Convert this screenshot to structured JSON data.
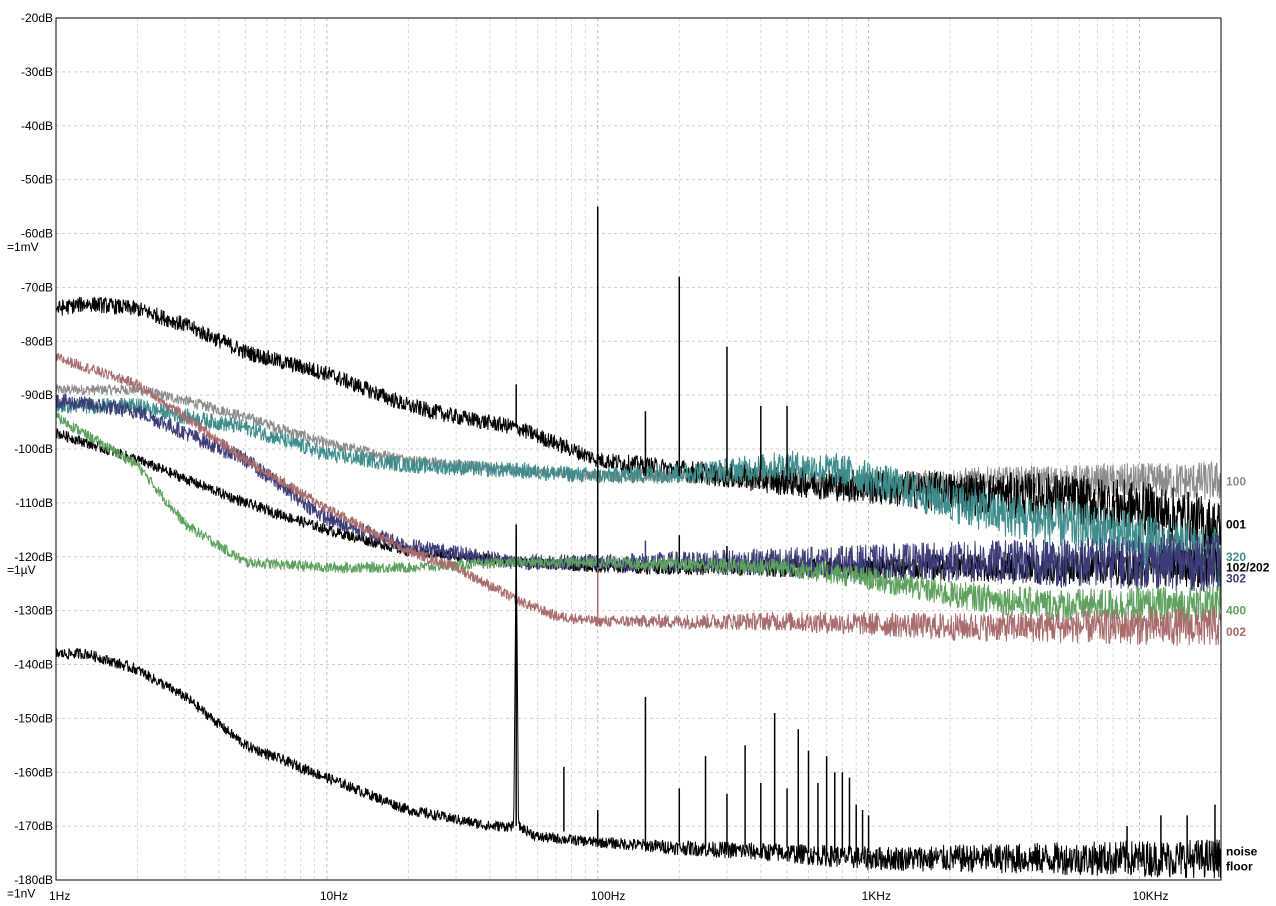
{
  "chart_data": {
    "type": "line",
    "title": "",
    "xlabel": "",
    "ylabel": "",
    "x_scale": "log",
    "xlim": [
      1,
      20000
    ],
    "ylim": [
      -180,
      -20
    ],
    "grid": true,
    "x_ticks": [
      {
        "v": 1,
        "label": "1Hz"
      },
      {
        "v": 10,
        "label": "10Hz"
      },
      {
        "v": 100,
        "label": "100Hz"
      },
      {
        "v": 1000,
        "label": "1KHz"
      },
      {
        "v": 10000,
        "label": "10KHz"
      }
    ],
    "y_ticks": [
      {
        "v": -20,
        "label": "-20dB"
      },
      {
        "v": -30,
        "label": "-30dB"
      },
      {
        "v": -40,
        "label": "-40dB"
      },
      {
        "v": -50,
        "label": "-50dB"
      },
      {
        "v": -60,
        "label": "-60dB"
      },
      {
        "v": -70,
        "label": "-70dB"
      },
      {
        "v": -80,
        "label": "-80dB"
      },
      {
        "v": -90,
        "label": "-90dB"
      },
      {
        "v": -100,
        "label": "-100dB"
      },
      {
        "v": -110,
        "label": "-110dB"
      },
      {
        "v": -120,
        "label": "-120dB"
      },
      {
        "v": -130,
        "label": "-130dB"
      },
      {
        "v": -140,
        "label": "-140dB"
      },
      {
        "v": -150,
        "label": "-150dB"
      },
      {
        "v": -160,
        "label": "-160dB"
      },
      {
        "v": -170,
        "label": "-170dB"
      },
      {
        "v": -180,
        "label": "-180dB"
      }
    ],
    "y_notes": [
      {
        "v": -62.5,
        "label": "=1mV"
      },
      {
        "v": -122.5,
        "label": "=1µV"
      },
      {
        "v": -182.5,
        "label": "=1nV"
      }
    ],
    "series": [
      {
        "name": "100",
        "color": "#8c8c8c",
        "points": [
          [
            1,
            -89
          ],
          [
            2,
            -89
          ],
          [
            3,
            -91
          ],
          [
            5,
            -94
          ],
          [
            10,
            -99
          ],
          [
            20,
            -102
          ],
          [
            50,
            -104
          ],
          [
            100,
            -105
          ],
          [
            200,
            -105
          ],
          [
            500,
            -106
          ],
          [
            1000,
            -107
          ],
          [
            2000,
            -106
          ],
          [
            5000,
            -106
          ],
          [
            10000,
            -106
          ],
          [
            20000,
            -106
          ]
        ],
        "band": 2,
        "label_y": -106
      },
      {
        "name": "001",
        "color": "#000000",
        "points": [
          [
            1,
            -74
          ],
          [
            1.3,
            -73
          ],
          [
            2,
            -74
          ],
          [
            3,
            -77
          ],
          [
            5,
            -82
          ],
          [
            7,
            -84
          ],
          [
            10,
            -86
          ],
          [
            20,
            -92
          ],
          [
            30,
            -94
          ],
          [
            50,
            -96
          ],
          [
            100,
            -102
          ],
          [
            200,
            -104
          ],
          [
            500,
            -106
          ],
          [
            1000,
            -107
          ],
          [
            2000,
            -108
          ],
          [
            5000,
            -109
          ],
          [
            10000,
            -111
          ],
          [
            15000,
            -113
          ],
          [
            20000,
            -115
          ]
        ],
        "band": 3,
        "label_y": -114
      },
      {
        "name": "320",
        "color": "#3f8c8c",
        "points": [
          [
            1,
            -92
          ],
          [
            2,
            -92
          ],
          [
            3,
            -94
          ],
          [
            5,
            -96
          ],
          [
            10,
            -101
          ],
          [
            20,
            -103
          ],
          [
            50,
            -104
          ],
          [
            100,
            -105
          ],
          [
            300,
            -104
          ],
          [
            500,
            -103
          ],
          [
            800,
            -104
          ],
          [
            1500,
            -108
          ],
          [
            3000,
            -112
          ],
          [
            7000,
            -115
          ],
          [
            15000,
            -119
          ],
          [
            20000,
            -120
          ]
        ],
        "band": 3,
        "label_y": -120
      },
      {
        "name": "102/202",
        "color": "#000000",
        "points": [
          [
            1,
            -97
          ],
          [
            2,
            -102
          ],
          [
            5,
            -110
          ],
          [
            10,
            -115
          ],
          [
            20,
            -119
          ],
          [
            50,
            -121
          ],
          [
            100,
            -122
          ],
          [
            500,
            -122
          ],
          [
            2000,
            -122
          ],
          [
            10000,
            -122
          ],
          [
            20000,
            -122
          ]
        ],
        "band": 2,
        "label_y": -122
      },
      {
        "name": "302",
        "color": "#3c3c78",
        "points": [
          [
            1,
            -91
          ],
          [
            2,
            -93
          ],
          [
            5,
            -102
          ],
          [
            10,
            -113
          ],
          [
            20,
            -118
          ],
          [
            50,
            -121
          ],
          [
            100,
            -121
          ],
          [
            500,
            -121
          ],
          [
            2000,
            -121
          ],
          [
            10000,
            -121
          ],
          [
            20000,
            -121
          ]
        ],
        "band": 3,
        "label_y": -124
      },
      {
        "name": "400",
        "color": "#5fa25f",
        "points": [
          [
            1,
            -94
          ],
          [
            2,
            -103
          ],
          [
            3,
            -114
          ],
          [
            5,
            -121
          ],
          [
            10,
            -122
          ],
          [
            20,
            -122
          ],
          [
            50,
            -121
          ],
          [
            100,
            -121
          ],
          [
            500,
            -122
          ],
          [
            1000,
            -124
          ],
          [
            2000,
            -127
          ],
          [
            5000,
            -129
          ],
          [
            20000,
            -129
          ]
        ],
        "band": 2,
        "label_y": -130
      },
      {
        "name": "002",
        "color": "#a86c6c",
        "points": [
          [
            1,
            -83
          ],
          [
            2,
            -88
          ],
          [
            3,
            -94
          ],
          [
            5,
            -102
          ],
          [
            10,
            -111
          ],
          [
            20,
            -119
          ],
          [
            30,
            -122
          ],
          [
            50,
            -128
          ],
          [
            70,
            -131
          ],
          [
            100,
            -132
          ],
          [
            500,
            -132
          ],
          [
            2000,
            -133
          ],
          [
            10000,
            -133
          ],
          [
            20000,
            -133
          ]
        ],
        "band": 2,
        "label_y": -134
      },
      {
        "name": "noise floor",
        "color": "#000000",
        "points": [
          [
            1,
            -138
          ],
          [
            1.3,
            -138
          ],
          [
            2,
            -141
          ],
          [
            3,
            -146
          ],
          [
            5,
            -155
          ],
          [
            10,
            -161
          ],
          [
            20,
            -167
          ],
          [
            40,
            -170
          ],
          [
            49,
            -170
          ],
          [
            50,
            -115
          ],
          [
            51,
            -170
          ],
          [
            60,
            -172
          ],
          [
            100,
            -173
          ],
          [
            200,
            -174
          ],
          [
            500,
            -175
          ],
          [
            1000,
            -176
          ],
          [
            5000,
            -176
          ],
          [
            20000,
            -176
          ]
        ],
        "band": 2,
        "label_y": -176
      }
    ],
    "spikes": [
      {
        "x": 50,
        "base": -96,
        "peak": -88,
        "color": "#000000"
      },
      {
        "x": 100,
        "base": -104,
        "peak": -55,
        "color": "#000000"
      },
      {
        "x": 150,
        "base": -105,
        "peak": -93,
        "color": "#000000"
      },
      {
        "x": 200,
        "base": -105,
        "peak": -68,
        "color": "#000000"
      },
      {
        "x": 300,
        "base": -105,
        "peak": -81,
        "color": "#000000"
      },
      {
        "x": 400,
        "base": -106,
        "peak": -92,
        "color": "#000000"
      },
      {
        "x": 500,
        "base": -106,
        "peak": -92,
        "color": "#000000"
      },
      {
        "x": 50,
        "base": -121,
        "peak": -116,
        "color": "#000000"
      },
      {
        "x": 100,
        "base": -122,
        "peak": -86,
        "color": "#000000"
      },
      {
        "x": 100,
        "base": -132,
        "peak": -122,
        "color": "#a86c6c"
      },
      {
        "x": 150,
        "base": -121,
        "peak": -117,
        "color": "#3c3c78"
      },
      {
        "x": 200,
        "base": -121,
        "peak": -116,
        "color": "#000000"
      },
      {
        "x": 300,
        "base": -121,
        "peak": -118,
        "color": "#000000"
      },
      {
        "x": 50,
        "base": -170,
        "peak": -114,
        "color": "#000000"
      },
      {
        "x": 75,
        "base": -171,
        "peak": -159,
        "color": "#000000"
      },
      {
        "x": 100,
        "base": -173,
        "peak": -167,
        "color": "#000000"
      },
      {
        "x": 150,
        "base": -173,
        "peak": -146,
        "color": "#000000"
      },
      {
        "x": 200,
        "base": -173,
        "peak": -163,
        "color": "#000000"
      },
      {
        "x": 250,
        "base": -174,
        "peak": -157,
        "color": "#000000"
      },
      {
        "x": 300,
        "base": -174,
        "peak": -164,
        "color": "#000000"
      },
      {
        "x": 350,
        "base": -174,
        "peak": -155,
        "color": "#000000"
      },
      {
        "x": 400,
        "base": -174,
        "peak": -162,
        "color": "#000000"
      },
      {
        "x": 450,
        "base": -174,
        "peak": -149,
        "color": "#000000"
      },
      {
        "x": 500,
        "base": -174,
        "peak": -163,
        "color": "#000000"
      },
      {
        "x": 550,
        "base": -175,
        "peak": -152,
        "color": "#000000"
      },
      {
        "x": 600,
        "base": -175,
        "peak": -156,
        "color": "#000000"
      },
      {
        "x": 650,
        "base": -175,
        "peak": -162,
        "color": "#000000"
      },
      {
        "x": 700,
        "base": -175,
        "peak": -157,
        "color": "#000000"
      },
      {
        "x": 750,
        "base": -175,
        "peak": -160,
        "color": "#000000"
      },
      {
        "x": 800,
        "base": -175,
        "peak": -160,
        "color": "#000000"
      },
      {
        "x": 850,
        "base": -175,
        "peak": -161,
        "color": "#000000"
      },
      {
        "x": 900,
        "base": -175,
        "peak": -166,
        "color": "#000000"
      },
      {
        "x": 950,
        "base": -175,
        "peak": -167,
        "color": "#000000"
      },
      {
        "x": 1000,
        "base": -175,
        "peak": -168,
        "color": "#000000"
      },
      {
        "x": 9000,
        "base": -176,
        "peak": -170,
        "color": "#000000"
      },
      {
        "x": 12000,
        "base": -176,
        "peak": -168,
        "color": "#000000"
      },
      {
        "x": 15000,
        "base": -176,
        "peak": -168,
        "color": "#000000"
      },
      {
        "x": 19000,
        "base": -176,
        "peak": -166,
        "color": "#000000"
      }
    ]
  }
}
